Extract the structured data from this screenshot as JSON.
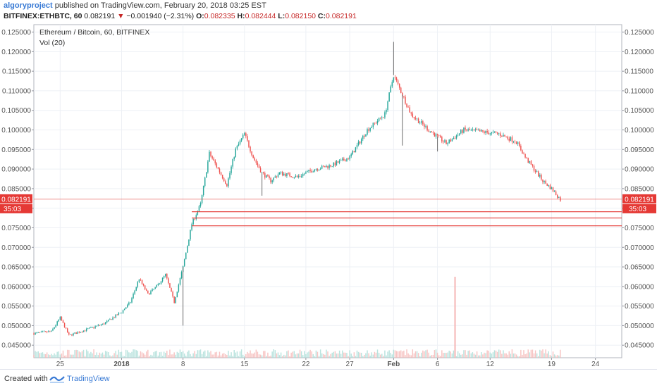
{
  "header": {
    "author": "algoryproject",
    "published_text": "published on TradingView.com, February 20, 2018 03:25 EST",
    "symbol": "BITFINEX:ETHBTC, 60",
    "last": "0.082191",
    "change_arrow": "▼",
    "change": "−0.001940 (−2.31%)",
    "open_label": "O:",
    "open": "0.082335",
    "high_label": "H:",
    "high": "0.082444",
    "low_label": "L:",
    "low": "0.082150",
    "close_label": "C:",
    "close": "0.082191"
  },
  "footer": {
    "created_with": "Created with",
    "brand": "TradingView"
  },
  "colors": {
    "up": "#26a69a",
    "down": "#ef5350",
    "wick": "#6b6b6b",
    "hline": "#e53935",
    "price_tag": "#e53935",
    "grid": "#edf0f5",
    "axis_text": "#555555"
  },
  "chart_data": {
    "type": "candlestick",
    "title": "Ethereum / Bitcoin, 60, BITFINEX",
    "indicator": "Vol (20)",
    "x_ticks": [
      "25",
      "2018",
      "8",
      "15",
      "22",
      "27",
      "Feb",
      "6",
      "12",
      "19",
      "24"
    ],
    "y_ticks": [
      "0.125000",
      "0.120000",
      "0.115000",
      "0.110000",
      "0.105000",
      "0.100000",
      "0.095000",
      "0.090000",
      "0.085000",
      "0.080000",
      "0.075000",
      "0.070000",
      "0.065000",
      "0.060000",
      "0.055000",
      "0.050000",
      "0.045000"
    ],
    "ylim": [
      0.0418,
      0.1269
    ],
    "x_range_days": [
      "2017-12-22",
      "2018-02-27"
    ],
    "price_label": "0.082191",
    "countdown_label": "35:03",
    "horizontal_lines": [
      0.0823,
      0.0791,
      0.0775,
      0.0755
    ],
    "price_path": [
      {
        "x": "2017-12-22",
        "y": 0.048
      },
      {
        "x": "2017-12-24",
        "y": 0.0485
      },
      {
        "x": "2017-12-25",
        "y": 0.052
      },
      {
        "x": "2017-12-26",
        "y": 0.0475
      },
      {
        "x": "2017-12-28",
        "y": 0.049
      },
      {
        "x": "2017-12-30",
        "y": 0.0505
      },
      {
        "x": "2018-01-01",
        "y": 0.0535
      },
      {
        "x": "2018-01-02",
        "y": 0.056
      },
      {
        "x": "2018-01-03",
        "y": 0.062
      },
      {
        "x": "2018-01-04",
        "y": 0.058
      },
      {
        "x": "2018-01-05",
        "y": 0.06
      },
      {
        "x": "2018-01-06",
        "y": 0.063
      },
      {
        "x": "2018-01-07",
        "y": 0.056
      },
      {
        "x": "2018-01-08",
        "y": 0.065
      },
      {
        "x": "2018-01-09",
        "y": 0.076
      },
      {
        "x": "2018-01-10",
        "y": 0.081
      },
      {
        "x": "2018-01-11",
        "y": 0.094
      },
      {
        "x": "2018-01-12",
        "y": 0.09
      },
      {
        "x": "2018-01-13",
        "y": 0.086
      },
      {
        "x": "2018-01-14",
        "y": 0.095
      },
      {
        "x": "2018-01-15",
        "y": 0.099
      },
      {
        "x": "2018-01-16",
        "y": 0.093
      },
      {
        "x": "2018-01-17",
        "y": 0.089
      },
      {
        "x": "2018-01-18",
        "y": 0.087
      },
      {
        "x": "2018-01-19",
        "y": 0.089
      },
      {
        "x": "2018-01-21",
        "y": 0.088
      },
      {
        "x": "2018-01-23",
        "y": 0.09
      },
      {
        "x": "2018-01-25",
        "y": 0.091
      },
      {
        "x": "2018-01-27",
        "y": 0.093
      },
      {
        "x": "2018-01-29",
        "y": 0.1
      },
      {
        "x": "2018-01-31",
        "y": 0.104
      },
      {
        "x": "2018-02-01",
        "y": 0.114
      },
      {
        "x": "2018-02-02",
        "y": 0.109
      },
      {
        "x": "2018-02-03",
        "y": 0.104
      },
      {
        "x": "2018-02-05",
        "y": 0.1
      },
      {
        "x": "2018-02-07",
        "y": 0.0965
      },
      {
        "x": "2018-02-09",
        "y": 0.1
      },
      {
        "x": "2018-02-11",
        "y": 0.0995
      },
      {
        "x": "2018-02-13",
        "y": 0.099
      },
      {
        "x": "2018-02-15",
        "y": 0.097
      },
      {
        "x": "2018-02-16",
        "y": 0.093
      },
      {
        "x": "2018-02-17",
        "y": 0.09
      },
      {
        "x": "2018-02-18",
        "y": 0.087
      },
      {
        "x": "2018-02-19",
        "y": 0.085
      },
      {
        "x": "2018-02-20",
        "y": 0.0822
      }
    ],
    "spikes": [
      {
        "x": "2018-01-08",
        "low": 0.05
      },
      {
        "x": "2018-01-17",
        "low": 0.0832
      },
      {
        "x": "2018-02-01",
        "high": 0.1225
      },
      {
        "x": "2018-02-02",
        "low": 0.096
      },
      {
        "x": "2018-02-06",
        "low": 0.0945
      }
    ]
  }
}
